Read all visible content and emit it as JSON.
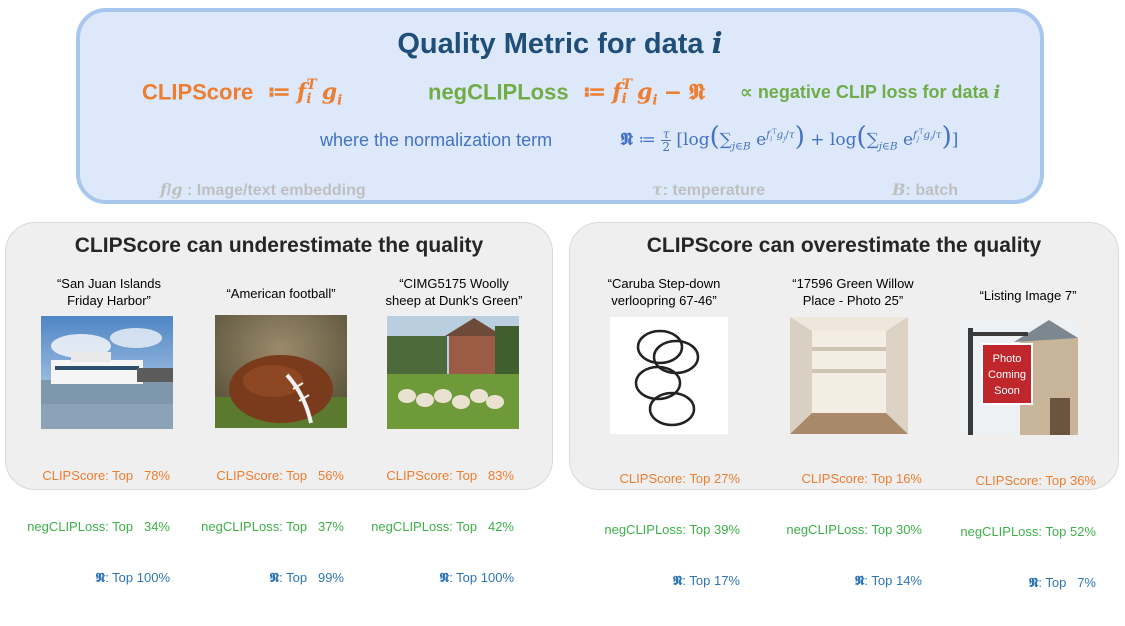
{
  "metric": {
    "title_prefix": "Quality Metric for data ",
    "title_var": "i",
    "clipscore_label": "CLIPScore",
    "clipscore_def": "≔",
    "negclip_label": "negCLIPLoss",
    "negclip_def": "≔",
    "prop_text": "∝ negative CLIP loss for data ",
    "prop_var": "i",
    "norm_text": "where the normalization term",
    "legend_fg": "Image/text embedding",
    "legend_tau": "temperature",
    "legend_b": "batch"
  },
  "left_panel": {
    "title": "CLIPScore can underestimate the quality",
    "examples": [
      {
        "caption_1": "“San Juan Islands",
        "caption_2": "Friday Harbor”",
        "cs": "CLIPScore: Top   78%",
        "ncl": "negCLIPLoss: Top   34%",
        "n_label": ": Top 100%",
        "image": "ferry-photo"
      },
      {
        "caption_1": "“American football”",
        "caption_2": "",
        "cs": "CLIPScore: Top   56%",
        "ncl": "negCLIPLoss: Top   37%",
        "n_label": ": Top   99%",
        "image": "football-photo"
      },
      {
        "caption_1": "“CIMG5175 Woolly",
        "caption_2": "sheep at Dunk's Green”",
        "cs": "CLIPScore: Top   83%",
        "ncl": "negCLIPLoss: Top   42%",
        "n_label": ": Top 100%",
        "image": "sheep-photo"
      }
    ]
  },
  "right_panel": {
    "title": "CLIPScore can overestimate the quality",
    "examples": [
      {
        "caption_1": "“Caruba Step-down",
        "caption_2": "verloopring 67-46”",
        "cs": "CLIPScore: Top 27%",
        "ncl": "negCLIPLoss: Top 39%",
        "n_label": ": Top 17%",
        "image": "rings-sketch"
      },
      {
        "caption_1": "“17596 Green Willow",
        "caption_2": "Place - Photo 25”",
        "cs": "CLIPScore: Top 16%",
        "ncl": "negCLIPLoss: Top 30%",
        "n_label": ": Top 14%",
        "image": "closet-photo"
      },
      {
        "caption_1": "“Listing Image 7”",
        "caption_2": "",
        "cs": "CLIPScore: Top 36%",
        "ncl": "negCLIPLoss: Top 52%",
        "n_label": ": Top   7%",
        "image": "photo-coming-soon-sign",
        "sign_1": "Photo",
        "sign_2": "Coming",
        "sign_3": "Soon"
      }
    ]
  },
  "colors": {
    "orange": "#ed7d31",
    "green": "#70ad47",
    "blue": "#4472c4",
    "box_bg": "#dde9fa",
    "box_border": "#a7c8ec",
    "panel_bg": "#efefef"
  }
}
